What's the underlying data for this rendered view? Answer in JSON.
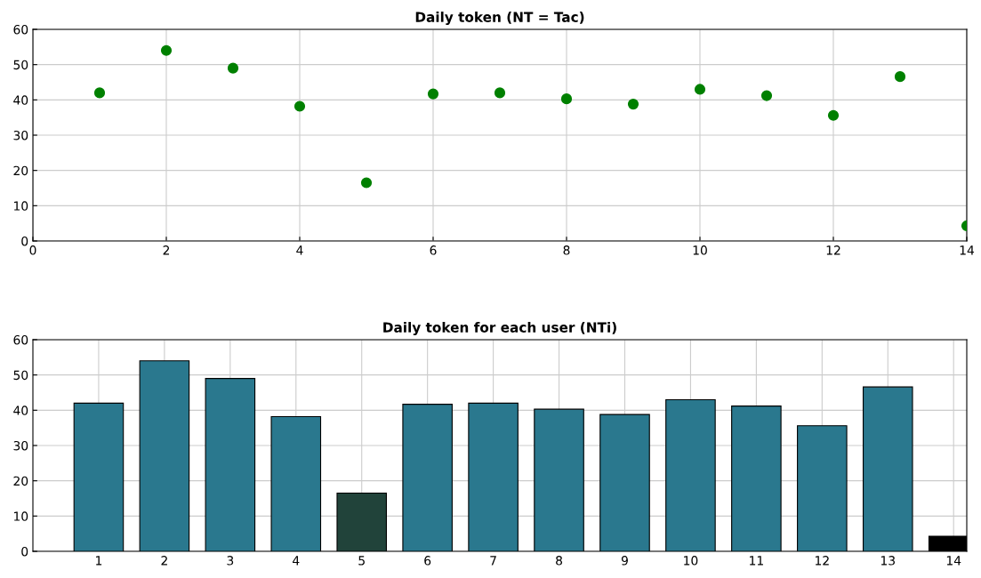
{
  "chart_data": [
    {
      "type": "scatter",
      "title": "Daily token (NT = Tac)",
      "x": [
        1,
        2,
        3,
        4,
        5,
        6,
        7,
        8,
        9,
        10,
        11,
        12,
        13,
        14
      ],
      "series": [
        {
          "color": "#008000",
          "values": [
            42,
            54,
            49,
            38.2,
            16.5,
            41.7,
            42,
            40.3,
            38.8,
            43,
            41.2,
            35.6,
            46.6,
            4.3
          ]
        }
      ],
      "marker": "circle",
      "xlim": [
        0,
        14
      ],
      "xticks": [
        0,
        2,
        4,
        6,
        8,
        10,
        12,
        14
      ],
      "ylim": [
        0,
        60
      ],
      "yticks": [
        0,
        10,
        20,
        30,
        40,
        50,
        60
      ],
      "grid": true
    },
    {
      "type": "bar",
      "title": "Daily token for each user (NTi)",
      "categories": [
        "1",
        "2",
        "3",
        "4",
        "5",
        "6",
        "7",
        "8",
        "9",
        "10",
        "11",
        "12",
        "13",
        "14"
      ],
      "values": [
        42,
        54,
        49,
        38.2,
        16.5,
        41.7,
        42,
        40.3,
        38.8,
        43,
        41.2,
        35.6,
        46.6,
        4.3
      ],
      "colors": [
        "#2a788e",
        "#2a788e",
        "#2a788e",
        "#2a788e",
        "#21433a",
        "#2a788e",
        "#2a788e",
        "#2a788e",
        "#2a788e",
        "#2a788e",
        "#2a788e",
        "#2a788e",
        "#2a788e",
        "#000000"
      ],
      "ylim": [
        0,
        60
      ],
      "yticks": [
        0,
        10,
        20,
        30,
        40,
        50,
        60
      ],
      "grid": true
    }
  ]
}
